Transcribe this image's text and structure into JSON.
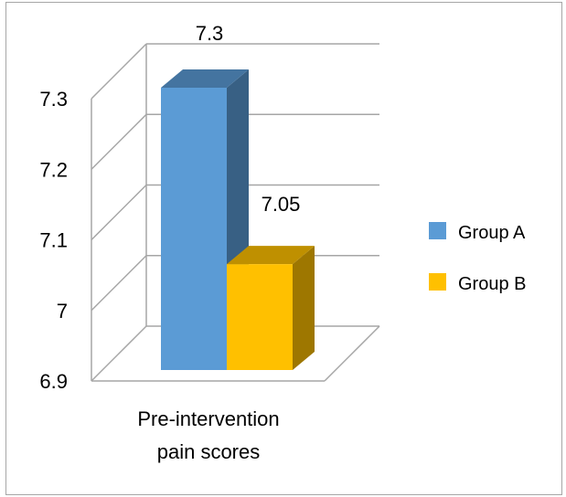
{
  "chart_data": {
    "type": "bar",
    "categories": [
      "Pre-intervention pain scores"
    ],
    "category_lines": [
      "Pre-intervention",
      "pain scores"
    ],
    "series": [
      {
        "name": "Group A",
        "values": [
          7.3
        ],
        "color": "#5b9bd5",
        "label": "7.3"
      },
      {
        "name": "Group B",
        "values": [
          7.05
        ],
        "color": "#ffc000",
        "label": "7.05"
      }
    ],
    "ylim": [
      6.9,
      7.3
    ],
    "yticks": [
      "7.3",
      "7.2",
      "7.1",
      "7",
      "6.9"
    ],
    "tick_values": [
      7.3,
      7.2,
      7.1,
      7.0,
      6.9
    ],
    "title": "",
    "xlabel": "",
    "ylabel": "",
    "grid": true,
    "legend_position": "right",
    "style": "3d-clustered-column"
  }
}
